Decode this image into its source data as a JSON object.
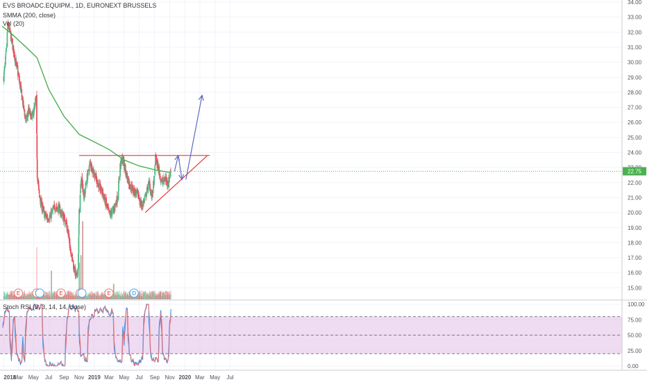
{
  "legend": {
    "symbol": "EVS BROADC.EQUIPM., 1D, EURONEXT BRUSSELS",
    "smma": "SMMA (200, close)",
    "vol": "Vol (20)",
    "stoch": "Stoch RSI (3, 3, 14, 14, close)"
  },
  "price_label": "22.75",
  "colors": {
    "up": "#53b987",
    "down": "#eb4d5c",
    "smma": "#4caf50",
    "stoch_k": "#2196f3",
    "stoch_d": "#ef6c6c",
    "stoch_band": "#e1bee7",
    "drawing_red": "#e53935",
    "drawing_blue": "#5c6bc0",
    "price_label_bg": "#4caf50"
  },
  "chart_data": [
    {
      "type": "candlestick",
      "y_ticks": [
        "34.00",
        "33.00",
        "32.00",
        "31.00",
        "30.00",
        "29.00",
        "28.00",
        "27.00",
        "26.00",
        "25.00",
        "24.00",
        "23.00",
        "22.00",
        "21.00",
        "20.00",
        "19.00",
        "18.00",
        "17.00",
        "16.00",
        "15.00"
      ],
      "x_ticks": [
        "2018",
        "Mar",
        "May",
        "Jul",
        "Sep",
        "Nov",
        "2019",
        "Mar",
        "May",
        "Jul",
        "Sep",
        "Nov",
        "2020",
        "Mar",
        "May",
        "Jul"
      ],
      "ylim": [
        14.6,
        34.2
      ],
      "last_price": 22.75,
      "close_path": [
        [
          "2018-01-01",
          29.0
        ],
        [
          "2018-01-10",
          30.5
        ],
        [
          "2018-01-18",
          32.6
        ],
        [
          "2018-02-01",
          31.5
        ],
        [
          "2018-02-15",
          30.3
        ],
        [
          "2018-03-01",
          29.1
        ],
        [
          "2018-03-20",
          27.2
        ],
        [
          "2018-04-01",
          26.0
        ],
        [
          "2018-04-10",
          26.8
        ],
        [
          "2018-04-25",
          26.3
        ],
        [
          "2018-05-05",
          27.0
        ],
        [
          "2018-05-12",
          27.6
        ],
        [
          "2018-05-14",
          25.0
        ],
        [
          "2018-05-16",
          22.5
        ],
        [
          "2018-05-25",
          21.0
        ],
        [
          "2018-06-10",
          20.0
        ],
        [
          "2018-06-25",
          19.6
        ],
        [
          "2018-07-10",
          19.8
        ],
        [
          "2018-07-25",
          20.4
        ],
        [
          "2018-08-10",
          20.3
        ],
        [
          "2018-08-25",
          19.8
        ],
        [
          "2018-09-10",
          19.3
        ],
        [
          "2018-09-25",
          17.8
        ],
        [
          "2018-10-10",
          16.4
        ],
        [
          "2018-10-22",
          15.6
        ],
        [
          "2018-10-28",
          16.6
        ],
        [
          "2018-11-01",
          20.0
        ],
        [
          "2018-11-10",
          22.5
        ],
        [
          "2018-11-20",
          21.0
        ],
        [
          "2018-12-01",
          22.2
        ],
        [
          "2018-12-15",
          23.3
        ],
        [
          "2019-01-05",
          22.4
        ],
        [
          "2019-01-20",
          21.8
        ],
        [
          "2019-02-05",
          21.2
        ],
        [
          "2019-02-20",
          20.4
        ],
        [
          "2019-03-05",
          19.8
        ],
        [
          "2019-03-20",
          20.2
        ],
        [
          "2019-04-05",
          21.0
        ],
        [
          "2019-04-15",
          23.2
        ],
        [
          "2019-04-25",
          23.6
        ],
        [
          "2019-05-10",
          22.5
        ],
        [
          "2019-05-25",
          21.8
        ],
        [
          "2019-06-10",
          21.4
        ],
        [
          "2019-06-25",
          21.2
        ],
        [
          "2019-07-10",
          20.4
        ],
        [
          "2019-07-25",
          21.0
        ],
        [
          "2019-08-10",
          22.0
        ],
        [
          "2019-08-20",
          21.0
        ],
        [
          "2019-08-30",
          22.2
        ],
        [
          "2019-09-05",
          23.6
        ],
        [
          "2019-09-15",
          23.0
        ],
        [
          "2019-09-25",
          22.3
        ],
        [
          "2019-10-05",
          22.0
        ],
        [
          "2019-10-15",
          22.3
        ],
        [
          "2019-10-25",
          21.9
        ],
        [
          "2019-11-05",
          22.75
        ]
      ],
      "smma": [
        [
          "2017-12-25",
          32.4
        ],
        [
          "2018-02-01",
          31.9
        ],
        [
          "2018-04-01",
          31.0
        ],
        [
          "2018-05-15",
          30.3
        ],
        [
          "2018-07-01",
          28.2
        ],
        [
          "2018-09-01",
          26.4
        ],
        [
          "2018-11-01",
          25.2
        ],
        [
          "2019-01-01",
          24.7
        ],
        [
          "2019-03-01",
          24.2
        ],
        [
          "2019-05-01",
          23.5
        ],
        [
          "2019-07-01",
          23.1
        ],
        [
          "2019-09-01",
          22.85
        ],
        [
          "2019-11-05",
          22.65
        ]
      ],
      "volume": {
        "spikes": [
          [
            "2018-05-13",
            1.0
          ],
          [
            "2018-07-12",
            0.55
          ],
          [
            "2018-11-01",
            0.7
          ],
          [
            "2018-11-08",
            0.85
          ],
          [
            "2018-11-15",
            1.5
          ],
          [
            "2019-03-20",
            0.3
          ]
        ]
      },
      "events": [
        {
          "date": "2018-03-01",
          "label": "E",
          "kind": "earnings"
        },
        {
          "date": "2018-05-14",
          "label": "E",
          "kind": "earnings"
        },
        {
          "date": "2018-05-26",
          "label": "",
          "kind": "dividend"
        },
        {
          "date": "2018-08-20",
          "label": "E",
          "kind": "earnings"
        },
        {
          "date": "2018-11-05",
          "label": "E",
          "kind": "earnings"
        },
        {
          "date": "2018-11-12",
          "label": "",
          "kind": "dividend"
        },
        {
          "date": "2019-03-01",
          "label": "E",
          "kind": "earnings"
        },
        {
          "date": "2019-06-10",
          "label": "D",
          "kind": "dividend"
        }
      ],
      "drawings": {
        "resistance": {
          "from": [
            "2018-11-01",
            23.8
          ],
          "to": [
            "2020-04-10",
            23.8
          ]
        },
        "support": {
          "from": [
            "2019-07-25",
            20.0
          ],
          "to": [
            "2020-04-01",
            23.8
          ]
        },
        "arrow_up": {
          "from": [
            "2020-01-05",
            22.2
          ],
          "to": [
            "2020-03-10",
            27.8
          ]
        },
        "arrow_bounce": [
          [
            "2019-11-20",
            22.75
          ],
          [
            "2019-12-05",
            23.8
          ],
          [
            "2019-12-20",
            22.2
          ]
        ]
      }
    },
    {
      "type": "line",
      "title": "Stoch RSI (3, 3, 14, 14, close)",
      "y_ticks": [
        "100.00",
        "75.00",
        "50.00",
        "25.00",
        "0.00"
      ],
      "ylim": [
        -5,
        105
      ],
      "band": [
        20,
        80
      ]
    }
  ]
}
